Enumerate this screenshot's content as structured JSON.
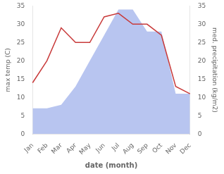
{
  "chart_data": {
    "type": "line",
    "xlabel": "date (month)",
    "ylabel": "max temp (C)",
    "y2label": "med. precipitation (kg/m2)",
    "categories": [
      "Jan",
      "Feb",
      "Mar",
      "Apr",
      "May",
      "Jun",
      "Jul",
      "Aug",
      "Sep",
      "Oct",
      "Nov",
      "Dec"
    ],
    "series": [
      {
        "type": "line",
        "color": "#c83a3a",
        "values": [
          14,
          20,
          29,
          25,
          25,
          32,
          33,
          30,
          30,
          27,
          13,
          11
        ]
      },
      {
        "type": "area",
        "color": "#b8c5f0",
        "axis": "y2",
        "values": [
          7,
          7,
          8,
          13,
          20,
          27,
          34,
          34,
          28,
          28,
          11,
          11
        ]
      }
    ],
    "ylim": [
      0,
      35
    ],
    "yticks": [
      0,
      5,
      10,
      15,
      20,
      25,
      30,
      35
    ],
    "y2lim": [
      0,
      35
    ],
    "y2ticks": [
      0,
      5,
      10,
      15,
      20,
      25,
      30,
      35
    ],
    "grid": false
  }
}
